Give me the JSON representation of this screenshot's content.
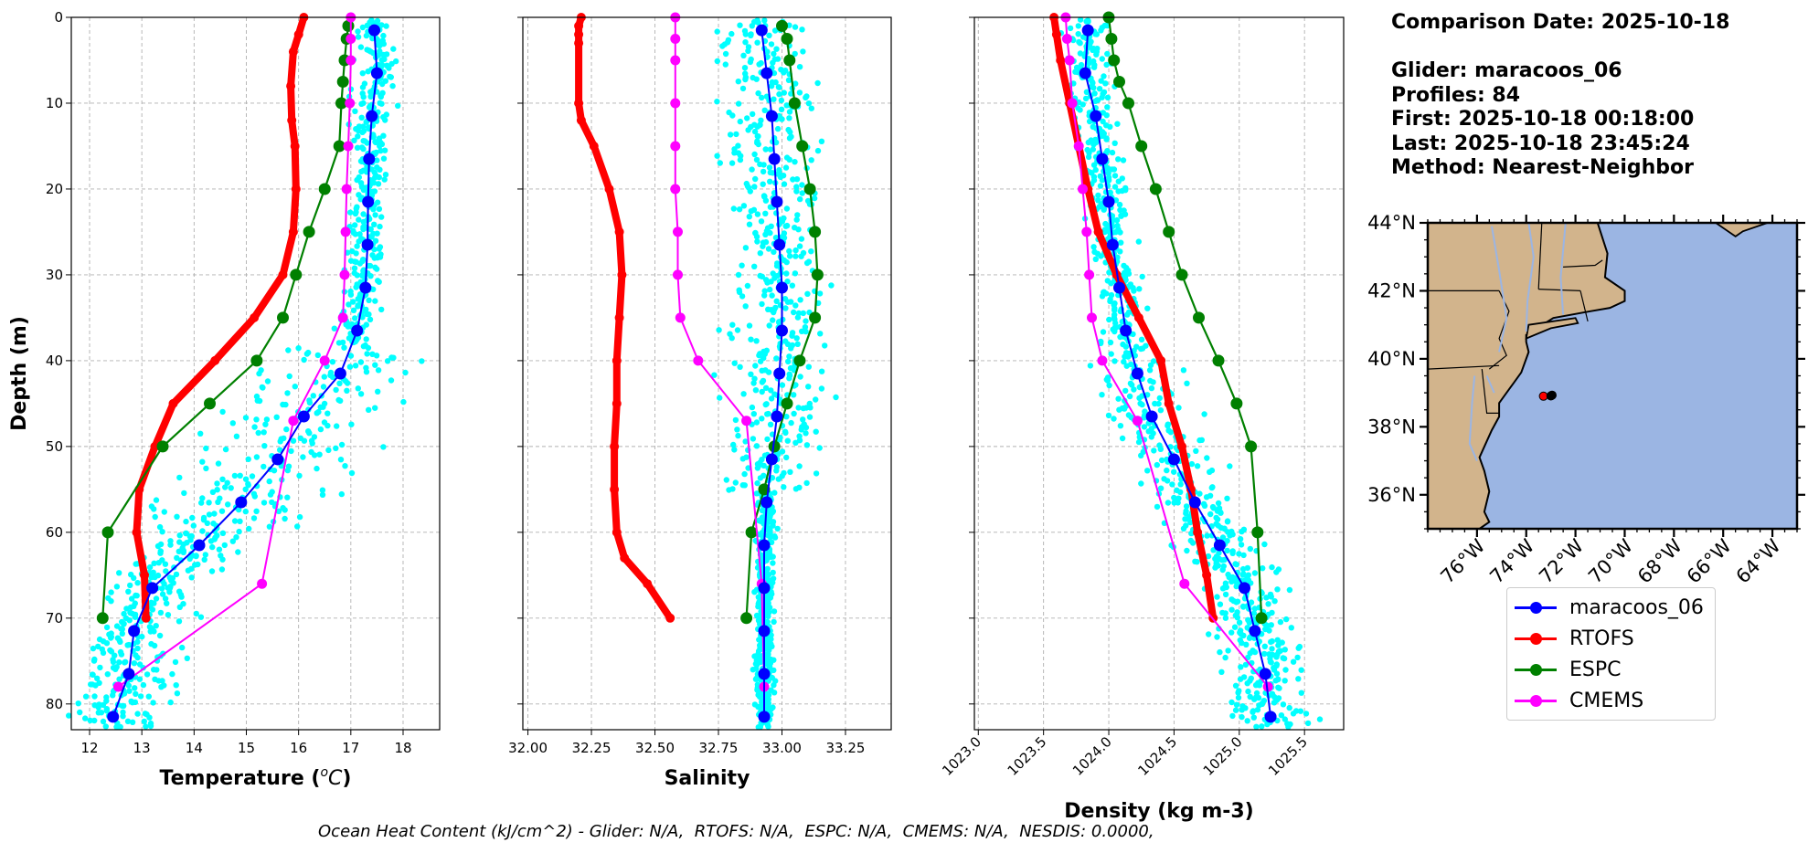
{
  "chart_data": [
    {
      "type": "line",
      "xlabel": "Temperature (°C)",
      "ylabel": "Depth (m)",
      "xlim": [
        11.65,
        18.7
      ],
      "ylim": [
        83,
        0
      ],
      "xticks": [
        12,
        13,
        14,
        15,
        16,
        17,
        18
      ],
      "yticks": [
        0,
        10,
        20,
        30,
        40,
        50,
        60,
        70,
        80
      ],
      "grid": true,
      "series": [
        {
          "name": "maracoos_06",
          "color": "#0000ff",
          "x": [
            17.45,
            17.5,
            17.4,
            17.35,
            17.33,
            17.32,
            17.28,
            17.12,
            16.8,
            16.1,
            15.6,
            14.9,
            14.1,
            13.2,
            12.85,
            12.75,
            12.45
          ],
          "y": [
            1.5,
            6.5,
            11.5,
            16.5,
            21.5,
            26.5,
            31.5,
            36.5,
            41.5,
            46.5,
            51.5,
            56.5,
            61.5,
            66.5,
            71.5,
            76.5,
            81.5
          ]
        },
        {
          "name": "RTOFS",
          "color": "#ff0000",
          "x": [
            16.1,
            16.0,
            15.9,
            15.85,
            15.87,
            15.93,
            15.95,
            15.9,
            15.7,
            15.15,
            14.4,
            13.6,
            13.25,
            12.95,
            12.9,
            13.05,
            13.08
          ],
          "y": [
            0,
            2,
            4,
            8,
            12,
            15,
            20,
            25,
            30,
            35,
            40,
            45,
            50,
            55,
            60,
            65,
            70
          ]
        },
        {
          "name": "ESPC",
          "color": "#008000",
          "x": [
            16.95,
            16.92,
            16.88,
            16.85,
            16.82,
            16.78,
            16.5,
            16.2,
            15.95,
            15.7,
            15.2,
            14.3,
            13.4,
            12.35,
            12.25
          ],
          "y": [
            1,
            2.5,
            5,
            7.5,
            10,
            15,
            20,
            25,
            30,
            35,
            40,
            45,
            50,
            60,
            70
          ]
        },
        {
          "name": "CMEMS",
          "color": "#ff00ff",
          "x": [
            17.0,
            17.0,
            17.0,
            16.98,
            16.95,
            16.92,
            16.9,
            16.88,
            16.85,
            16.5,
            15.9,
            15.3,
            12.55
          ],
          "y": [
            0,
            2.5,
            5,
            10,
            15,
            20,
            25,
            30,
            35,
            40,
            47,
            66,
            78
          ]
        }
      ]
    },
    {
      "type": "line",
      "xlabel": "Salinity",
      "xlim": [
        31.98,
        33.43
      ],
      "ylim": [
        83,
        0
      ],
      "xticks": [
        "32.00",
        "32.25",
        "32.50",
        "32.75",
        "33.00",
        "33.25"
      ],
      "grid": true,
      "series": [
        {
          "name": "maracoos_06",
          "color": "#0000ff",
          "x": [
            32.92,
            32.94,
            32.96,
            32.97,
            32.98,
            32.99,
            33.0,
            33.0,
            32.99,
            32.98,
            32.96,
            32.94,
            32.93,
            32.93,
            32.93,
            32.93,
            32.93
          ],
          "y": [
            1.5,
            6.5,
            11.5,
            16.5,
            21.5,
            26.5,
            31.5,
            36.5,
            41.5,
            46.5,
            51.5,
            56.5,
            61.5,
            66.5,
            71.5,
            76.5,
            81.5
          ]
        },
        {
          "name": "RTOFS",
          "color": "#ff0000",
          "x": [
            32.21,
            32.2,
            32.2,
            32.2,
            32.2,
            32.21,
            32.26,
            32.32,
            32.36,
            32.37,
            32.36,
            32.35,
            32.35,
            32.34,
            32.34,
            32.35,
            32.38,
            32.47,
            32.56
          ],
          "y": [
            0,
            1,
            2,
            3,
            10,
            12,
            15,
            20,
            25,
            30,
            35,
            40,
            45,
            50,
            55,
            60,
            63,
            66,
            70
          ]
        },
        {
          "name": "ESPC",
          "color": "#008000",
          "x": [
            33.0,
            33.02,
            33.03,
            33.05,
            33.08,
            33.11,
            33.13,
            33.14,
            33.13,
            33.07,
            33.02,
            32.97,
            32.93,
            32.88,
            32.86
          ],
          "y": [
            1,
            2.5,
            5,
            10,
            15,
            20,
            25,
            30,
            35,
            40,
            45,
            50,
            55,
            60,
            70
          ]
        },
        {
          "name": "CMEMS",
          "color": "#ff00ff",
          "x": [
            32.58,
            32.58,
            32.58,
            32.58,
            32.58,
            32.58,
            32.59,
            32.59,
            32.6,
            32.67,
            32.86,
            32.92,
            32.93
          ],
          "y": [
            0,
            2.5,
            5,
            10,
            15,
            20,
            25,
            30,
            35,
            40,
            47,
            66,
            78
          ]
        }
      ]
    },
    {
      "type": "line",
      "xlabel": "Density (kg m-3)",
      "xlim": [
        1022.97,
        1025.8
      ],
      "ylim": [
        83,
        0
      ],
      "xticks": [
        "1023.0",
        "1023.5",
        "1024.0",
        "1024.5",
        "1025.0",
        "1025.5"
      ],
      "grid": true,
      "series": [
        {
          "name": "maracoos_06",
          "color": "#0000ff",
          "x": [
            1023.84,
            1023.82,
            1023.9,
            1023.95,
            1024.0,
            1024.03,
            1024.08,
            1024.13,
            1024.22,
            1024.33,
            1024.5,
            1024.66,
            1024.85,
            1025.04,
            1025.12,
            1025.2,
            1025.24
          ],
          "y": [
            1.5,
            6.5,
            11.5,
            16.5,
            21.5,
            26.5,
            31.5,
            36.5,
            41.5,
            46.5,
            51.5,
            56.5,
            61.5,
            66.5,
            71.5,
            76.5,
            81.5
          ]
        },
        {
          "name": "RTOFS",
          "color": "#ff0000",
          "x": [
            1023.58,
            1023.6,
            1023.63,
            1023.7,
            1023.77,
            1023.84,
            1023.92,
            1024.06,
            1024.23,
            1024.4,
            1024.46,
            1024.56,
            1024.63,
            1024.68,
            1024.75,
            1024.8
          ],
          "y": [
            0,
            2,
            5,
            10,
            15,
            20,
            25,
            30,
            35,
            40,
            45,
            50,
            55,
            60,
            65,
            70
          ]
        },
        {
          "name": "ESPC",
          "color": "#008000",
          "x": [
            1024.0,
            1024.02,
            1024.04,
            1024.08,
            1024.15,
            1024.25,
            1024.36,
            1024.46,
            1024.56,
            1024.69,
            1024.84,
            1024.98,
            1025.09,
            1025.14,
            1025.17
          ],
          "y": [
            0,
            2.5,
            5,
            7.5,
            10,
            15,
            20,
            25,
            30,
            35,
            40,
            45,
            50,
            60,
            70
          ]
        },
        {
          "name": "CMEMS",
          "color": "#ff00ff",
          "x": [
            1023.67,
            1023.68,
            1023.7,
            1023.72,
            1023.77,
            1023.8,
            1023.83,
            1023.85,
            1023.87,
            1023.95,
            1024.22,
            1024.58,
            1025.22
          ],
          "y": [
            0,
            2.5,
            5,
            10,
            15,
            20,
            25,
            30,
            35,
            40,
            47,
            66,
            78
          ]
        }
      ]
    }
  ],
  "map": {
    "lat_labels": [
      "44°N",
      "42°N",
      "40°N",
      "38°N",
      "36°N"
    ],
    "lat_values": [
      44,
      42,
      40,
      38,
      36
    ],
    "lon_labels": [
      "76°W",
      "74°W",
      "72°W",
      "70°W",
      "68°W",
      "66°W",
      "64°W"
    ],
    "lon_values": [
      -76,
      -74,
      -72,
      -70,
      -68,
      -66,
      -64
    ],
    "extent": [
      -78,
      -63,
      35,
      44
    ],
    "glider_track": [
      [
        -73.3,
        38.9
      ],
      [
        -73.0,
        38.91
      ],
      [
        -72.95,
        38.93
      ]
    ],
    "land_color": "#d2b48c",
    "ocean_color": "#9bb5e3"
  },
  "info": {
    "comparison_date": "Comparison Date: 2025-10-18",
    "glider": "Glider: maracoos_06",
    "profiles": "Profiles: 84",
    "first": "First: 2025-10-18 00:18:00",
    "last": "Last: 2025-10-18 23:45:24",
    "method": "Method: Nearest-Neighbor"
  },
  "legend": [
    {
      "label": "maracoos_06",
      "color": "#0000ff"
    },
    {
      "label": "RTOFS",
      "color": "#ff0000"
    },
    {
      "label": "ESPC",
      "color": "#008000"
    },
    {
      "label": "CMEMS",
      "color": "#ff00ff"
    }
  ],
  "footer": "Ocean Heat Content (kJ/cm^2) - Glider: N/A,  RTOFS: N/A,  ESPC: N/A,  CMEMS: N/A,  NESDIS: 0.0000,"
}
